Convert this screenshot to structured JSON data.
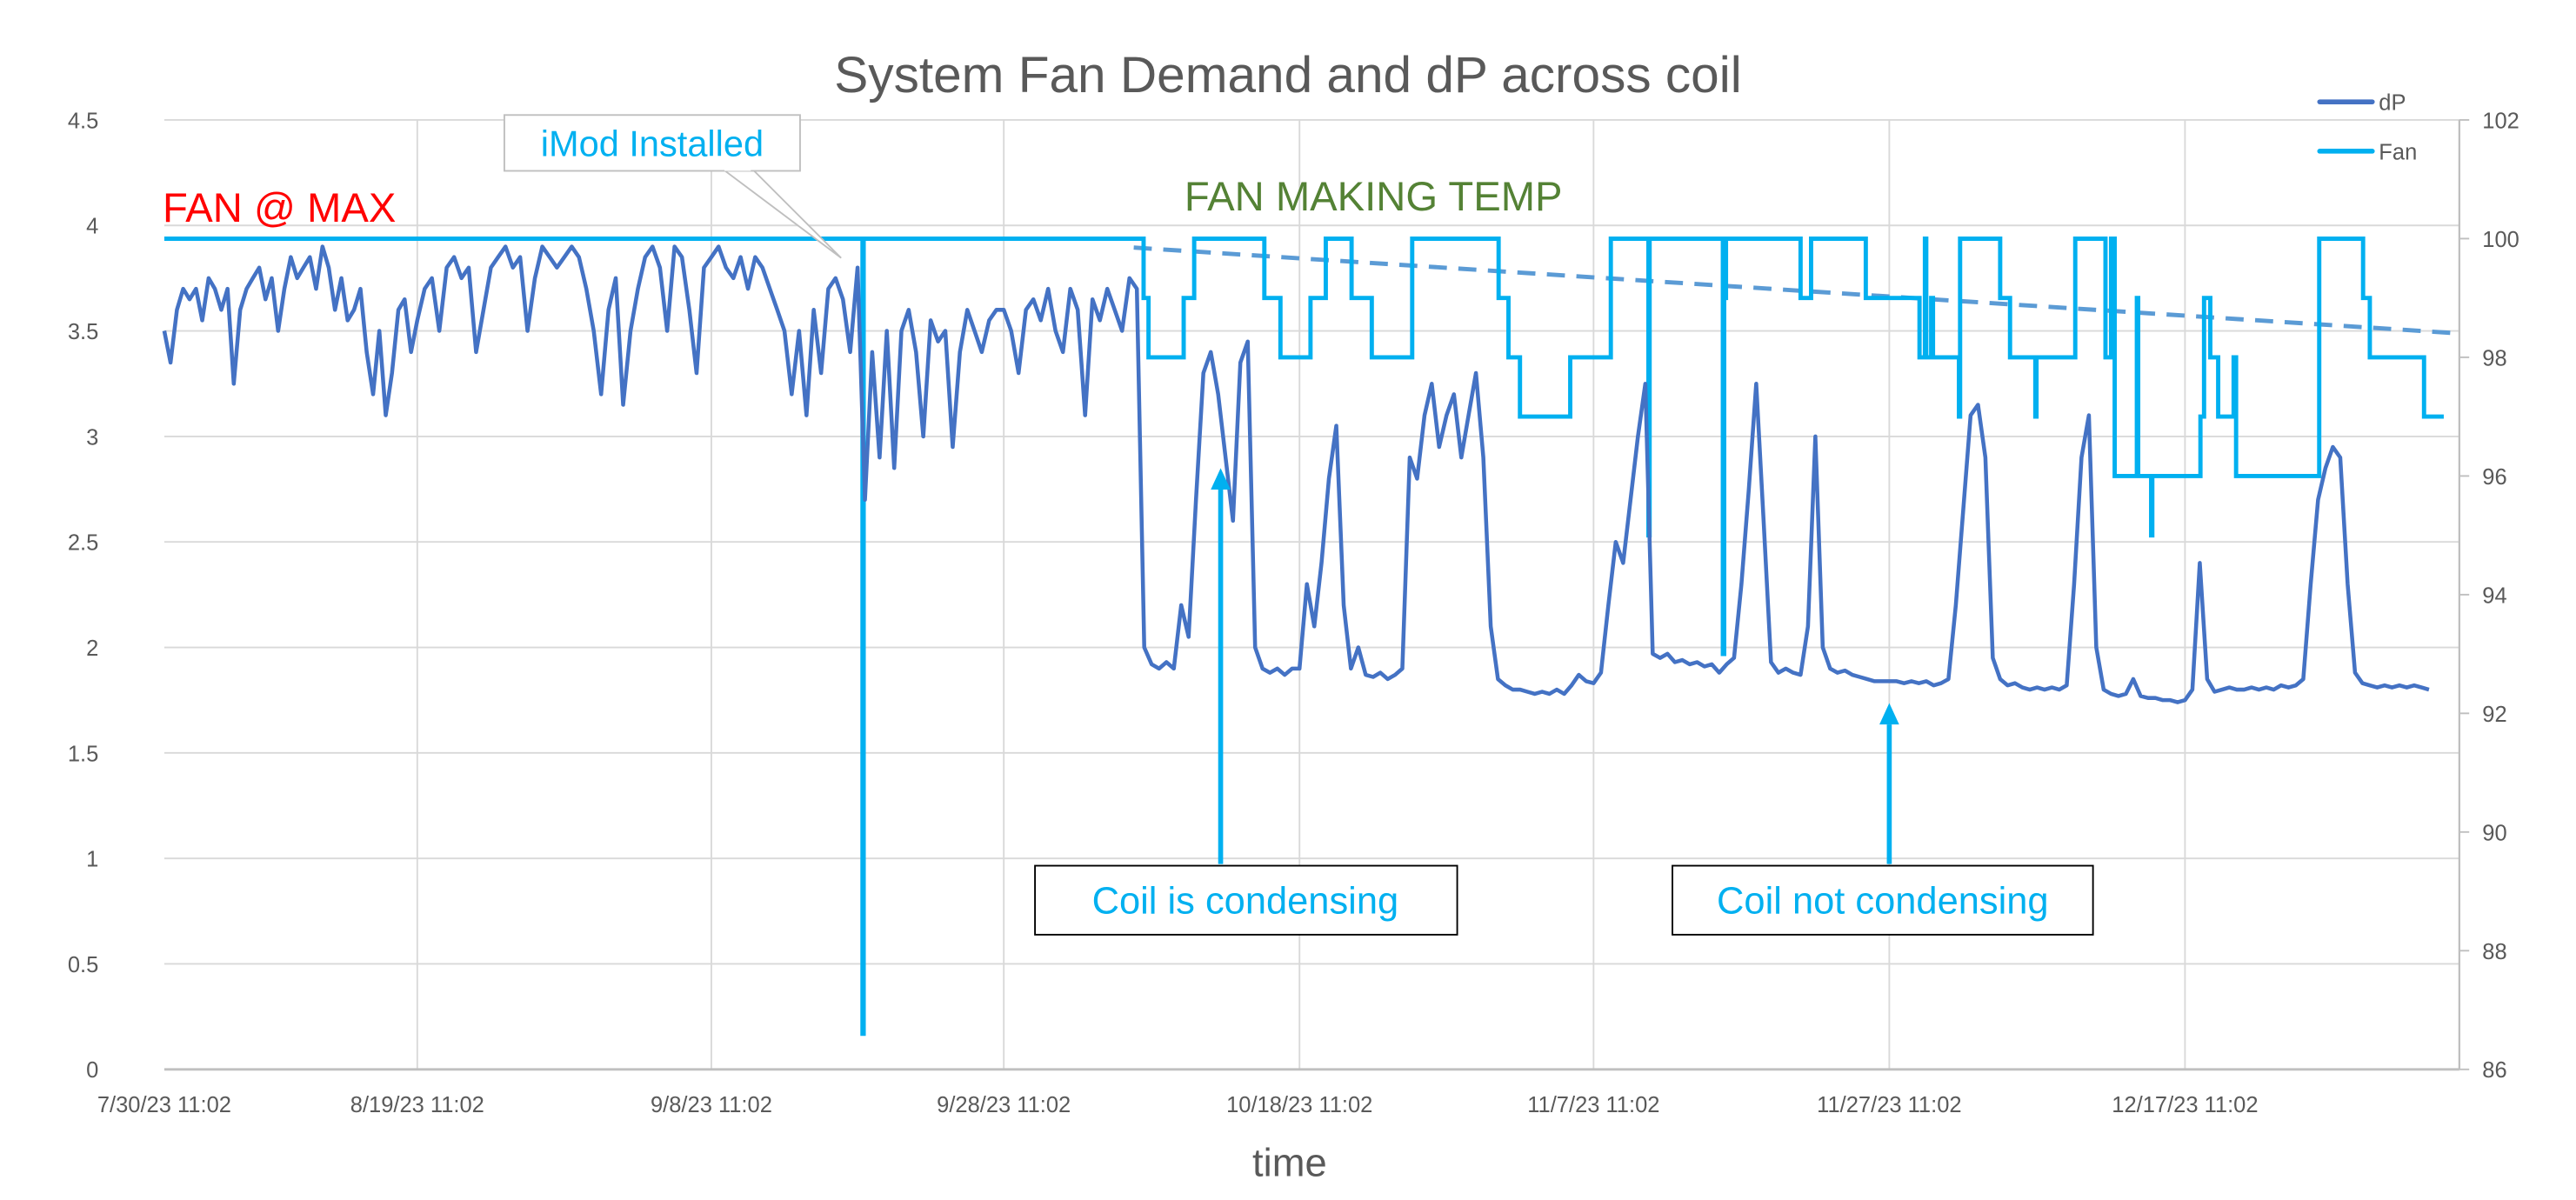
{
  "chart_data": {
    "type": "line",
    "title": "System Fan Demand and dP across coil",
    "xlabel": "time",
    "x_ticks": [
      "7/30/23 11:02",
      "8/19/23 11:02",
      "9/8/23 11:02",
      "9/28/23 11:02",
      "10/18/23 11:02",
      "11/7/23 11:02",
      "11/27/23 11:02",
      "12/17/23 11:02"
    ],
    "y_left": {
      "range": [
        0,
        4.5
      ],
      "ticks": [
        "0",
        "0.5",
        "1",
        "1.5",
        "2",
        "2.5",
        "3",
        "3.5",
        "4",
        "4.5"
      ]
    },
    "y_right": {
      "range": [
        86,
        102
      ],
      "ticks": [
        "86",
        "88",
        "90",
        "92",
        "94",
        "96",
        "98",
        "100",
        "102"
      ]
    },
    "grid": true,
    "legend_position": "top-right",
    "colors": {
      "dP": "#4472C4",
      "Fan": "#00B0F0",
      "trend": "#5B9BD5",
      "fan_max": "#FF0000",
      "fan_making_temp": "#548235",
      "callout": "#00B0F0"
    },
    "series": [
      {
        "name": "dP",
        "axis": "left",
        "start": "2023-07-30T11:02",
        "step_hours": 12,
        "values": [
          3.5,
          3.35,
          3.6,
          3.7,
          3.65,
          3.7,
          3.55,
          3.75,
          3.7,
          3.6,
          3.7,
          3.25,
          3.6,
          3.7,
          3.75,
          3.8,
          3.65,
          3.75,
          3.5,
          3.7,
          3.85,
          3.75,
          3.8,
          3.85,
          3.7,
          3.9,
          3.8,
          3.6,
          3.75,
          3.55,
          3.6,
          3.7,
          3.4,
          3.2,
          3.5,
          3.1,
          3.3,
          3.6,
          3.65,
          3.4,
          3.55,
          3.7,
          3.75,
          3.5,
          3.8,
          3.85,
          3.75,
          3.8,
          3.4,
          3.6,
          3.8,
          3.85,
          3.9,
          3.8,
          3.85,
          3.5,
          3.75,
          3.9,
          3.85,
          3.8,
          3.85,
          3.9,
          3.85,
          3.7,
          3.5,
          3.2,
          3.6,
          3.75,
          3.15,
          3.5,
          3.7,
          3.85,
          3.9,
          3.8,
          3.5,
          3.9,
          3.85,
          3.6,
          3.3,
          3.8,
          3.85,
          3.9,
          3.8,
          3.75,
          3.85,
          3.7,
          3.85,
          3.8,
          3.7,
          3.6,
          3.5,
          3.2,
          3.5,
          3.1,
          3.6,
          3.3,
          3.7,
          3.75,
          3.65,
          3.4,
          3.8,
          2.7,
          3.4,
          2.9,
          3.5,
          2.85,
          3.5,
          3.6,
          3.4,
          3.0,
          3.55,
          3.45,
          3.5,
          2.95,
          3.4,
          3.6,
          3.5,
          3.4,
          3.55,
          3.6,
          3.6,
          3.5,
          3.3,
          3.6,
          3.65,
          3.55,
          3.7,
          3.5,
          3.4,
          3.7,
          3.6,
          3.1,
          3.65,
          3.55,
          3.7,
          3.6,
          3.5,
          3.75,
          3.7,
          2.0,
          1.92,
          1.9,
          1.93,
          1.9,
          2.2,
          2.05,
          2.7,
          3.3,
          3.4,
          3.2,
          2.9,
          2.6,
          3.35,
          3.45,
          2.0,
          1.9,
          1.88,
          1.9,
          1.87,
          1.9,
          1.9,
          2.3,
          2.1,
          2.4,
          2.8,
          3.05,
          2.2,
          1.9,
          2.0,
          1.87,
          1.86,
          1.88,
          1.85,
          1.87,
          1.9,
          2.9,
          2.8,
          3.1,
          3.25,
          2.95,
          3.1,
          3.2,
          2.9,
          3.1,
          3.3,
          2.9,
          2.1,
          1.85,
          1.82,
          1.8,
          1.8,
          1.79,
          1.78,
          1.79,
          1.78,
          1.8,
          1.78,
          1.82,
          1.87,
          1.84,
          1.83,
          1.88,
          2.2,
          2.5,
          2.4,
          2.7,
          3.0,
          3.25,
          1.97,
          1.95,
          1.97,
          1.93,
          1.94,
          1.92,
          1.93,
          1.91,
          1.92,
          1.88,
          1.92,
          1.95,
          2.3,
          2.75,
          3.25,
          2.6,
          1.93,
          1.88,
          1.9,
          1.88,
          1.87,
          2.1,
          3.0,
          2.0,
          1.9,
          1.88,
          1.89,
          1.87,
          1.86,
          1.85,
          1.84,
          1.84,
          1.84,
          1.84,
          1.83,
          1.84,
          1.83,
          1.84,
          1.82,
          1.83,
          1.85,
          2.2,
          2.65,
          3.1,
          3.15,
          2.9,
          1.95,
          1.85,
          1.82,
          1.83,
          1.81,
          1.8,
          1.81,
          1.8,
          1.81,
          1.8,
          1.82,
          2.3,
          2.9,
          3.1,
          2.0,
          1.8,
          1.78,
          1.77,
          1.78,
          1.85,
          1.77,
          1.76,
          1.76,
          1.75,
          1.75,
          1.74,
          1.75,
          1.8,
          2.4,
          1.85,
          1.79,
          1.8,
          1.81,
          1.8,
          1.8,
          1.81,
          1.8,
          1.81,
          1.8,
          1.82,
          1.81,
          1.82,
          1.85,
          2.3,
          2.7,
          2.85,
          2.95,
          2.9,
          2.3,
          1.88,
          1.83,
          1.82,
          1.81,
          1.82,
          1.81,
          1.82,
          1.81,
          1.82,
          1.81,
          1.8
        ]
      },
      {
        "name": "Fan",
        "axis": "right",
        "step": true,
        "points": [
          [
            "2023-07-30T11:02",
            100
          ],
          [
            "2023-09-18T19:00",
            86.6
          ],
          [
            "2023-09-18T21:00",
            100
          ],
          [
            "2023-10-07T22:00",
            99
          ],
          [
            "2023-10-08T06:00",
            98
          ],
          [
            "2023-10-10T15:00",
            99
          ],
          [
            "2023-10-11T08:00",
            100
          ],
          [
            "2023-10-16T02:00",
            99
          ],
          [
            "2023-10-17T04:00",
            98
          ],
          [
            "2023-10-19T05:00",
            99
          ],
          [
            "2023-10-20T06:00",
            100
          ],
          [
            "2023-10-22T00:00",
            99
          ],
          [
            "2023-10-23T09:00",
            98
          ],
          [
            "2023-10-26T03:00",
            100
          ],
          [
            "2023-11-01T00:00",
            99
          ],
          [
            "2023-11-01T16:00",
            98
          ],
          [
            "2023-11-02T11:00",
            97
          ],
          [
            "2023-11-05T21:00",
            98
          ],
          [
            "2023-11-08T15:00",
            100
          ],
          [
            "2023-11-11T04:00",
            95
          ],
          [
            "2023-11-11T06:00",
            100
          ],
          [
            "2023-11-16T05:00",
            93
          ],
          [
            "2023-11-16T07:00",
            99
          ],
          [
            "2023-11-16T10:00",
            100
          ],
          [
            "2023-11-21T11:00",
            99
          ],
          [
            "2023-11-22T04:00",
            100
          ],
          [
            "2023-11-25T21:00",
            99
          ],
          [
            "2023-11-29T12:00",
            98
          ],
          [
            "2023-11-29T21:00",
            100
          ],
          [
            "2023-11-29T23:00",
            98
          ],
          [
            "2023-11-30T07:00",
            99
          ],
          [
            "2023-11-30T10:00",
            98
          ],
          [
            "2023-12-02T04:00",
            97
          ],
          [
            "2023-12-02T06:00",
            100
          ],
          [
            "2023-12-04T23:00",
            99
          ],
          [
            "2023-12-05T15:00",
            98
          ],
          [
            "2023-12-07T08:00",
            97
          ],
          [
            "2023-12-07T10:00",
            98
          ],
          [
            "2023-12-10T01:00",
            100
          ],
          [
            "2023-12-12T02:00",
            98
          ],
          [
            "2023-12-12T11:00",
            100
          ],
          [
            "2023-12-12T17:00",
            96
          ],
          [
            "2023-12-14T05:00",
            99
          ],
          [
            "2023-12-14T07:00",
            96
          ],
          [
            "2023-12-15T04:00",
            95
          ],
          [
            "2023-12-15T06:00",
            96
          ],
          [
            "2023-12-18T12:00",
            97
          ],
          [
            "2023-12-18T18:00",
            99
          ],
          [
            "2023-12-19T04:00",
            98
          ],
          [
            "2023-12-19T17:00",
            97
          ],
          [
            "2023-12-20T18:00",
            98
          ],
          [
            "2023-12-20T22:00",
            96
          ],
          [
            "2023-12-26T13:00",
            100
          ],
          [
            "2023-12-29T12:00",
            99
          ],
          [
            "2023-12-29T23:00",
            98
          ],
          [
            "2024-01-02T15:00",
            97
          ],
          [
            "2024-01-03T23:00",
            97
          ]
        ]
      }
    ],
    "trendline": {
      "series": "Fan",
      "style": "dashed",
      "points": [
        [
          "2023-10-07T06:00",
          99.85
        ],
        [
          "2024-01-05T02:00",
          98.4
        ]
      ]
    },
    "legend": [
      "dP",
      "Fan"
    ],
    "annotations": {
      "fan_max": "FAN @ MAX",
      "imod": "iMod Installed",
      "fan_making_temp": "FAN MAKING TEMP",
      "coil_condensing": "Coil is condensing",
      "coil_not_condensing": "Coil not condensing"
    }
  }
}
